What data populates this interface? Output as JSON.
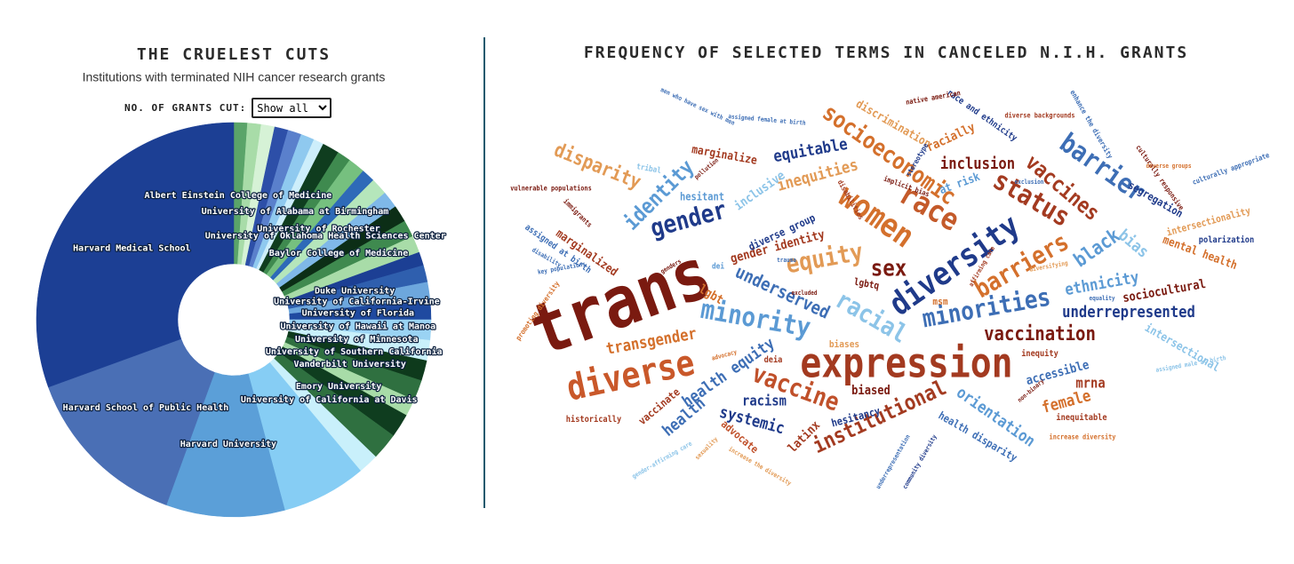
{
  "chart_data": [
    {
      "type": "donut",
      "title": "THE CRUELEST CUTS",
      "subtitle": "Institutions with terminated NIH cancer research grants",
      "filter_label": "NO. OF GRANTS CUT:",
      "filter_value": "Show all",
      "categories": [
        "Albert Einstein College of Medicine",
        null,
        null,
        null,
        null,
        null,
        null,
        "University of Alabama at Birmingham",
        null,
        null,
        "University of Rochester",
        "University of Oklahoma Health Sciences Center",
        null,
        "Baylor College of Medicine",
        null,
        null,
        null,
        "Duke University",
        "University of California-Irvine",
        "University of Florida",
        "University of Hawaii at Manoa",
        "University of Minnesota",
        "University of Southern California",
        "Vanderbilt University",
        null,
        "Emory University",
        "University of California at Davis",
        null,
        null,
        "Harvard University",
        "Harvard School of Public Health",
        "Harvard Medical School"
      ],
      "values": [
        4,
        4,
        4,
        4,
        4,
        4,
        3,
        5,
        4,
        5,
        4,
        5,
        5,
        5,
        5,
        5,
        4,
        5,
        5,
        6,
        6,
        6,
        6,
        6,
        5,
        7,
        8,
        6,
        25,
        35,
        50,
        110
      ],
      "colors": [
        "#5aa469",
        "#a8dca8",
        "#d6f2d6",
        "#2d4fa8",
        "#5a80cc",
        "#8fc9ef",
        "#cdeefb",
        "#0f3d1f",
        "#3f8a4f",
        "#76c07f",
        "#2e6ab8",
        "#b5e6bb",
        "#7fb8e8",
        "#0c2e16",
        "#3f8a4f",
        "#a8dca8",
        "#1c3f94",
        "#2f5fae",
        "#6da7dd",
        "#1f4aa0",
        "#9ad3f3",
        "#c9f0fb",
        "#0e3a1c",
        "#2f7040",
        "#a8dca8",
        "#0f3d1f",
        "#2f7040",
        "#c9f0fb",
        "#86cdf4",
        "#5b9fd8",
        "#4a6fb5",
        "#1c3f94"
      ]
    },
    {
      "type": "wordcloud",
      "title": "FREQUENCY OF SELECTED TERMS IN CANCELED N.I.H. GRANTS",
      "words": [
        {
          "text": "trans",
          "value": 80,
          "color": "#7a1a10"
        },
        {
          "text": "expression",
          "value": 46,
          "color": "#a33a20"
        },
        {
          "text": "diverse",
          "value": 40,
          "color": "#c9582a"
        },
        {
          "text": "diversity",
          "value": 36,
          "color": "#1f3a8a"
        },
        {
          "text": "women",
          "value": 36,
          "color": "#d4702c"
        },
        {
          "text": "race",
          "value": 34,
          "color": "#c45a2a"
        },
        {
          "text": "minority",
          "value": 30,
          "color": "#5b9ad4"
        },
        {
          "text": "racial",
          "value": 28,
          "color": "#8cc4e8"
        },
        {
          "text": "equity",
          "value": 28,
          "color": "#e29a55"
        },
        {
          "text": "sex",
          "value": 26,
          "color": "#7a1a10"
        },
        {
          "text": "vaccine",
          "value": 28,
          "color": "#c0502a"
        },
        {
          "text": "minorities",
          "value": 28,
          "color": "#3d6eb5"
        },
        {
          "text": "barriers",
          "value": 28,
          "color": "#d4702c"
        },
        {
          "text": "status",
          "value": 30,
          "color": "#a33a20"
        },
        {
          "text": "barrier",
          "value": 30,
          "color": "#3d6eb5"
        },
        {
          "text": "vaccines",
          "value": 24,
          "color": "#a33a20"
        },
        {
          "text": "socioeconomic",
          "value": 26,
          "color": "#d4702c"
        },
        {
          "text": "gender",
          "value": 28,
          "color": "#1f3a8a"
        },
        {
          "text": "identity",
          "value": 24,
          "color": "#5b9ad4"
        },
        {
          "text": "disparity",
          "value": 22,
          "color": "#e29a55"
        },
        {
          "text": "vaccination",
          "value": 22,
          "color": "#7a1a10"
        },
        {
          "text": "underrepresented",
          "value": 18,
          "color": "#1f3a8a"
        },
        {
          "text": "institutional",
          "value": 24,
          "color": "#a33a20"
        },
        {
          "text": "underserved",
          "value": 20,
          "color": "#3d6eb5"
        },
        {
          "text": "inclusion",
          "value": 18,
          "color": "#7a1a10"
        },
        {
          "text": "inequities",
          "value": 18,
          "color": "#e29a55"
        },
        {
          "text": "equitable",
          "value": 18,
          "color": "#1f3a8a"
        },
        {
          "text": "black",
          "value": 22,
          "color": "#5b9ad4"
        },
        {
          "text": "bias",
          "value": 18,
          "color": "#8cc4e8"
        },
        {
          "text": "ethnicity",
          "value": 18,
          "color": "#5b9ad4"
        },
        {
          "text": "transgender",
          "value": 18,
          "color": "#d4702c"
        },
        {
          "text": "health equity",
          "value": 18,
          "color": "#3d6eb5"
        },
        {
          "text": "systemic",
          "value": 18,
          "color": "#1f3a8a"
        },
        {
          "text": "racism",
          "value": 16,
          "color": "#1f3a8a"
        },
        {
          "text": "biased",
          "value": 14,
          "color": "#7a1a10"
        },
        {
          "text": "female",
          "value": 18,
          "color": "#d4702c"
        },
        {
          "text": "mrna",
          "value": 16,
          "color": "#a33a20"
        },
        {
          "text": "accessible",
          "value": 14,
          "color": "#3d6eb5"
        },
        {
          "text": "orientation",
          "value": 18,
          "color": "#5b9ad4"
        },
        {
          "text": "health disparity",
          "value": 12,
          "color": "#3d6eb5"
        },
        {
          "text": "hesitancy",
          "value": 12,
          "color": "#1f3a8a"
        },
        {
          "text": "latinx",
          "value": 14,
          "color": "#a33a20"
        },
        {
          "text": "advocate",
          "value": 12,
          "color": "#c0502a"
        },
        {
          "text": "vaccinate",
          "value": 12,
          "color": "#a33a20"
        },
        {
          "text": "health",
          "value": 18,
          "color": "#3d6eb5"
        },
        {
          "text": "sociocultural",
          "value": 14,
          "color": "#7a1a10"
        },
        {
          "text": "intersectional",
          "value": 13,
          "color": "#8cc4e8"
        },
        {
          "text": "intersectionality",
          "value": 11,
          "color": "#e29a55"
        },
        {
          "text": "mental health",
          "value": 13,
          "color": "#d4702c"
        },
        {
          "text": "polarization",
          "value": 10,
          "color": "#1f3a8a"
        },
        {
          "text": "segregation",
          "value": 12,
          "color": "#1f3a8a"
        },
        {
          "text": "culturally responsive",
          "value": 8,
          "color": "#7a1a10"
        },
        {
          "text": "culturally appropriate",
          "value": 8,
          "color": "#3d6eb5"
        },
        {
          "text": "enhance the diversity",
          "value": 8,
          "color": "#3d6eb5"
        },
        {
          "text": "race and ethnicity",
          "value": 10,
          "color": "#1f3a8a"
        },
        {
          "text": "native american",
          "value": 8,
          "color": "#7a1a10"
        },
        {
          "text": "diverse backgrounds",
          "value": 8,
          "color": "#a33a20"
        },
        {
          "text": "discrimination",
          "value": 13,
          "color": "#e29a55"
        },
        {
          "text": "racially",
          "value": 14,
          "color": "#d4702c"
        },
        {
          "text": "marginalize",
          "value": 13,
          "color": "#a33a20"
        },
        {
          "text": "tribal",
          "value": 9,
          "color": "#8cc4e8"
        },
        {
          "text": "hesitant",
          "value": 12,
          "color": "#5b9ad4"
        },
        {
          "text": "inclusive",
          "value": 14,
          "color": "#8cc4e8"
        },
        {
          "text": "at risk",
          "value": 13,
          "color": "#5b9ad4"
        },
        {
          "text": "stereotype",
          "value": 8,
          "color": "#1f3a8a"
        },
        {
          "text": "implicit bias",
          "value": 8,
          "color": "#7a1a10"
        },
        {
          "text": "disabilities",
          "value": 8,
          "color": "#a33a20"
        },
        {
          "text": "gender identity",
          "value": 14,
          "color": "#a33a20"
        },
        {
          "text": "diverse group",
          "value": 12,
          "color": "#1f3a8a"
        },
        {
          "text": "lgbt",
          "value": 14,
          "color": "#d4702c"
        },
        {
          "text": "lgbtq",
          "value": 11,
          "color": "#7a1a10"
        },
        {
          "text": "msm",
          "value": 11,
          "color": "#d4702c"
        },
        {
          "text": "biases",
          "value": 11,
          "color": "#e29a55"
        },
        {
          "text": "deia",
          "value": 10,
          "color": "#a33a20"
        },
        {
          "text": "marginalized",
          "value": 13,
          "color": "#a33a20"
        },
        {
          "text": "assigned at birth",
          "value": 10,
          "color": "#3d6eb5"
        },
        {
          "text": "vulnerable populations",
          "value": 8,
          "color": "#7a1a10"
        },
        {
          "text": "immigrants",
          "value": 8,
          "color": "#7a1a10"
        },
        {
          "text": "promoting diversity",
          "value": 8,
          "color": "#d4702c"
        },
        {
          "text": "key populations",
          "value": 7,
          "color": "#3d6eb5"
        },
        {
          "text": "historically",
          "value": 10,
          "color": "#a33a20"
        },
        {
          "text": "pollution",
          "value": 7,
          "color": "#7a1a10"
        },
        {
          "text": "men who have sex with men",
          "value": 7,
          "color": "#3d6eb5"
        },
        {
          "text": "assigned female at birth",
          "value": 7,
          "color": "#3d6eb5"
        },
        {
          "text": "inequity",
          "value": 10,
          "color": "#a33a20"
        },
        {
          "text": "inequitable",
          "value": 10,
          "color": "#a33a20"
        },
        {
          "text": "increase diversity",
          "value": 8,
          "color": "#d4702c"
        },
        {
          "text": "non-binary",
          "value": 7,
          "color": "#7a1a10"
        },
        {
          "text": "community diversity",
          "value": 7,
          "color": "#1f3a8a"
        },
        {
          "text": "underrepresentation",
          "value": 7,
          "color": "#3d6eb5"
        },
        {
          "text": "increase the diversity",
          "value": 7,
          "color": "#e29a55"
        },
        {
          "text": "sexuality",
          "value": 7,
          "color": "#e29a55"
        },
        {
          "text": "gender-affirming care",
          "value": 7,
          "color": "#8cc4e8"
        },
        {
          "text": "equality",
          "value": 7,
          "color": "#3d6eb5"
        },
        {
          "text": "diversifying",
          "value": 7,
          "color": "#e29a55"
        },
        {
          "text": "exclusion",
          "value": 7,
          "color": "#3d6eb5"
        },
        {
          "text": "assigned male at birth",
          "value": 7,
          "color": "#8cc4e8"
        },
        {
          "text": "diverse groups",
          "value": 7,
          "color": "#d4702c"
        },
        {
          "text": "excluded",
          "value": 7,
          "color": "#7a1a10"
        },
        {
          "text": "trauma",
          "value": 7,
          "color": "#3d6eb5"
        },
        {
          "text": "dei",
          "value": 9,
          "color": "#5b9ad4"
        },
        {
          "text": "genders",
          "value": 7,
          "color": "#7a1a10"
        },
        {
          "text": "advocacy",
          "value": 7,
          "color": "#d4702c"
        },
        {
          "text": "disability",
          "value": 7,
          "color": "#3d6eb5"
        },
        {
          "text": "affirming care",
          "value": 7,
          "color": "#a33a20"
        }
      ]
    }
  ]
}
